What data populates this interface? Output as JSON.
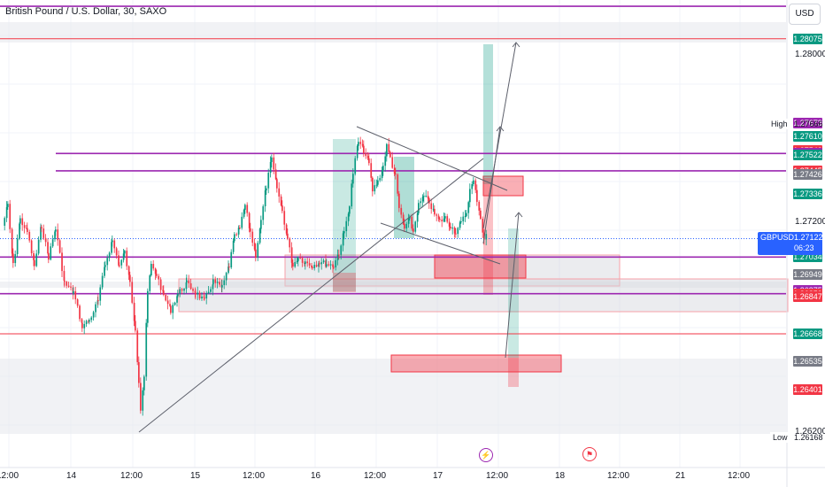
{
  "header": {
    "title": "British Pound / U.S. Dollar, 30, SAXO",
    "currency": "USD"
  },
  "chart_data": {
    "type": "candlestick",
    "symbol": "GBPUSD",
    "ylim": [
      1.2603,
      1.2826
    ],
    "y_ticks": [
      "1.28000",
      "1.27200",
      "1.26200"
    ],
    "x_ticks": [
      "12:00",
      "14",
      "12:00",
      "15",
      "12:00",
      "16",
      "12:00",
      "17",
      "12:00",
      "18",
      "12:00",
      "21",
      "12:00"
    ],
    "high_label": "High",
    "high_value": "1.27666",
    "low_label": "Low",
    "low_value": "1.26168",
    "last_price": "1.27122",
    "countdown": "06:23",
    "price_tags": [
      {
        "value": "1.28075",
        "price": 1.28075,
        "color": "#089981"
      },
      {
        "value": "1.27673",
        "price": 1.27673,
        "color": "#9c27b0"
      },
      {
        "value": "1.27610",
        "price": 1.2761,
        "color": "#089981"
      },
      {
        "value": "1.27543",
        "price": 1.27543,
        "color": "#f23645"
      },
      {
        "value": "1.27528",
        "price": 1.27528,
        "color": "#9c27b0"
      },
      {
        "value": "1.27522",
        "price": 1.27522,
        "color": "#089981"
      },
      {
        "value": "1.27445",
        "price": 1.27445,
        "color": "#f23645"
      },
      {
        "value": "1.27426",
        "price": 1.27426,
        "color": "#787b86"
      },
      {
        "value": "1.27336",
        "price": 1.27336,
        "color": "#089981"
      },
      {
        "value": "1.27119",
        "price": 1.27119,
        "color": "#089981"
      },
      {
        "value": "1.27046",
        "price": 1.27046,
        "color": "#787b86"
      },
      {
        "value": "1.27034",
        "price": 1.27034,
        "color": "#089981"
      },
      {
        "value": "1.26949",
        "price": 1.26949,
        "color": "#787b86"
      },
      {
        "value": "1.26875",
        "price": 1.26875,
        "color": "#9c27b0"
      },
      {
        "value": "1.26859",
        "price": 1.26859,
        "color": "#f23645"
      },
      {
        "value": "1.26847",
        "price": 1.26847,
        "color": "#f23645"
      },
      {
        "value": "1.26668",
        "price": 1.26668,
        "color": "#089981"
      },
      {
        "value": "1.26535",
        "price": 1.26535,
        "color": "#787b86"
      },
      {
        "value": "1.26401",
        "price": 1.26401,
        "color": "#f23645"
      }
    ],
    "horizontal_lines": [
      {
        "price": 1.2823,
        "color": "#9c27b0",
        "from_x": 0
      },
      {
        "price": 1.28075,
        "color": "#f23645",
        "from_x": 0
      },
      {
        "price": 1.27528,
        "color": "#9c27b0",
        "from_x": 63
      },
      {
        "price": 1.27445,
        "color": "#9c27b0",
        "from_x": 63
      },
      {
        "price": 1.27034,
        "color": "#9c27b0",
        "from_x": 0
      },
      {
        "price": 1.26859,
        "color": "#9c27b0",
        "from_x": 0
      },
      {
        "price": 1.26668,
        "color": "#f23645",
        "from_x": 0
      }
    ],
    "up_color": "#089981",
    "down_color": "#f23645"
  }
}
